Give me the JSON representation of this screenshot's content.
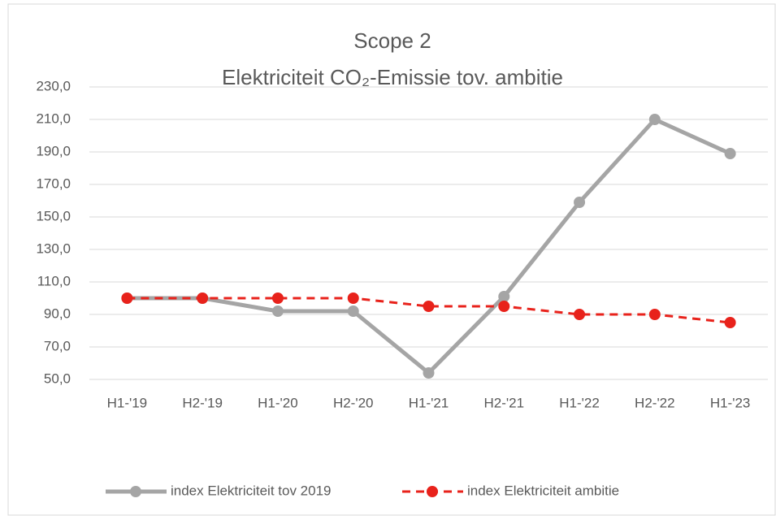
{
  "chart_data": {
    "type": "line",
    "title": "Scope 2",
    "subtitle": "Elektriciteit CO₂-Emissie tov. ambitie",
    "categories": [
      "H1-'19",
      "H2-'19",
      "H1-'20",
      "H2-'20",
      "H1-'21",
      "H2-'21",
      "H1-'22",
      "H2-'22",
      "H1-'23"
    ],
    "series": [
      {
        "name": "index Elektriciteit tov 2019",
        "color": "#a5a5a5",
        "dashed": false,
        "values": [
          100,
          100,
          92,
          92,
          54,
          101,
          159,
          210,
          189
        ]
      },
      {
        "name": "index Elektriciteit ambitie",
        "color": "#e8221b",
        "dashed": true,
        "values": [
          100,
          100,
          100,
          100,
          95,
          95,
          90,
          90,
          85
        ]
      }
    ],
    "ylim": [
      50,
      230
    ],
    "yticks": [
      {
        "value": 50,
        "label": "50,0"
      },
      {
        "value": 70,
        "label": "70,0"
      },
      {
        "value": 90,
        "label": "90,0"
      },
      {
        "value": 110,
        "label": "110,0"
      },
      {
        "value": 130,
        "label": "130,0"
      },
      {
        "value": 150,
        "label": "150,0"
      },
      {
        "value": 170,
        "label": "170,0"
      },
      {
        "value": 190,
        "label": "190,0"
      },
      {
        "value": 210,
        "label": "210,0"
      },
      {
        "value": 230,
        "label": "230,0"
      }
    ],
    "grid": true,
    "legend": "bottom"
  }
}
